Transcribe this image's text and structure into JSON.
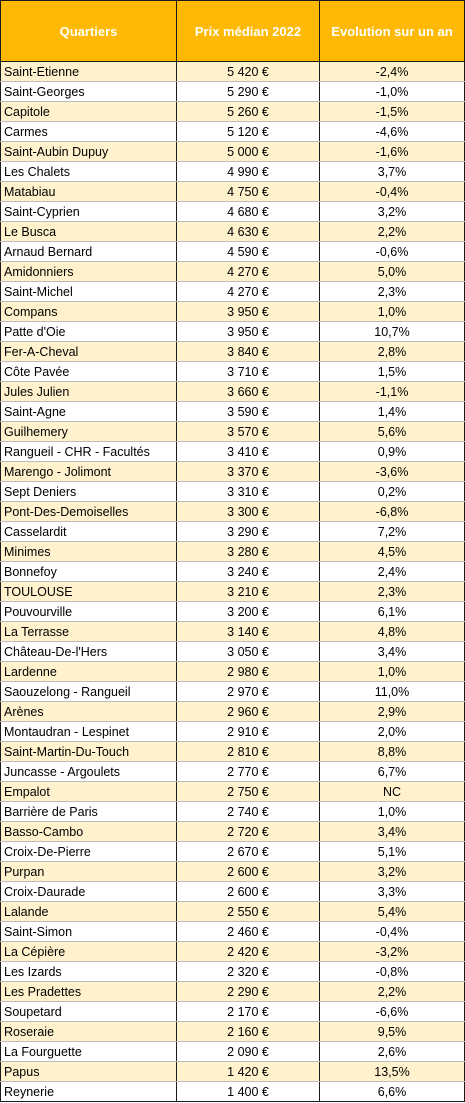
{
  "headers": {
    "quartier": "Quartiers",
    "prix": "Prix médian 2022",
    "evolution": "Evolution sur un an"
  },
  "rows": [
    {
      "name": "Saint-Etienne",
      "price": "5 420 €",
      "evo": "-2,4%"
    },
    {
      "name": "Saint-Georges",
      "price": "5 290 €",
      "evo": "-1,0%"
    },
    {
      "name": "Capitole",
      "price": "5 260 €",
      "evo": "-1,5%"
    },
    {
      "name": "Carmes",
      "price": "5 120 €",
      "evo": "-4,6%"
    },
    {
      "name": "Saint-Aubin Dupuy",
      "price": "5 000 €",
      "evo": "-1,6%"
    },
    {
      "name": "Les Chalets",
      "price": "4 990 €",
      "evo": "3,7%"
    },
    {
      "name": "Matabiau",
      "price": "4 750 €",
      "evo": "-0,4%"
    },
    {
      "name": "Saint-Cyprien",
      "price": "4 680 €",
      "evo": "3,2%"
    },
    {
      "name": "Le Busca",
      "price": "4 630 €",
      "evo": "2,2%"
    },
    {
      "name": "Arnaud Bernard",
      "price": "4 590 €",
      "evo": "-0,6%"
    },
    {
      "name": "Amidonniers",
      "price": "4 270 €",
      "evo": "5,0%"
    },
    {
      "name": "Saint-Michel",
      "price": "4 270 €",
      "evo": "2,3%"
    },
    {
      "name": "Compans",
      "price": "3 950 €",
      "evo": "1,0%"
    },
    {
      "name": "Patte d'Oie",
      "price": "3 950 €",
      "evo": "10,7%"
    },
    {
      "name": "Fer-A-Cheval",
      "price": "3 840 €",
      "evo": "2,8%"
    },
    {
      "name": "Côte Pavée",
      "price": "3 710 €",
      "evo": "1,5%"
    },
    {
      "name": "Jules Julien",
      "price": "3 660 €",
      "evo": "-1,1%"
    },
    {
      "name": "Saint-Agne",
      "price": "3 590 €",
      "evo": "1,4%"
    },
    {
      "name": "Guilhemery",
      "price": "3 570 €",
      "evo": "5,6%"
    },
    {
      "name": "Rangueil - CHR - Facultés",
      "price": "3 410 €",
      "evo": "0,9%"
    },
    {
      "name": "Marengo - Jolimont",
      "price": "3 370 €",
      "evo": "-3,6%"
    },
    {
      "name": "Sept Deniers",
      "price": "3 310 €",
      "evo": "0,2%"
    },
    {
      "name": "Pont-Des-Demoiselles",
      "price": "3 300 €",
      "evo": "-6,8%"
    },
    {
      "name": "Casselardit",
      "price": "3 290 €",
      "evo": "7,2%"
    },
    {
      "name": "Minimes",
      "price": "3 280 €",
      "evo": "4,5%"
    },
    {
      "name": "Bonnefoy",
      "price": "3 240 €",
      "evo": "2,4%"
    },
    {
      "name": "TOULOUSE",
      "price": "3 210 €",
      "evo": "2,3%"
    },
    {
      "name": "Pouvourville",
      "price": "3 200 €",
      "evo": "6,1%"
    },
    {
      "name": "La Terrasse",
      "price": "3 140 €",
      "evo": "4,8%"
    },
    {
      "name": "Château-De-l'Hers",
      "price": "3 050 €",
      "evo": "3,4%"
    },
    {
      "name": "Lardenne",
      "price": "2 980 €",
      "evo": "1,0%"
    },
    {
      "name": "Saouzelong - Rangueil",
      "price": "2 970 €",
      "evo": "11,0%"
    },
    {
      "name": "Arènes",
      "price": "2 960 €",
      "evo": "2,9%"
    },
    {
      "name": "Montaudran - Lespinet",
      "price": "2 910 €",
      "evo": "2,0%"
    },
    {
      "name": "Saint-Martin-Du-Touch",
      "price": "2 810 €",
      "evo": "8,8%"
    },
    {
      "name": "Juncasse - Argoulets",
      "price": "2 770 €",
      "evo": "6,7%"
    },
    {
      "name": "Empalot",
      "price": "2 750 €",
      "evo": "NC"
    },
    {
      "name": "Barrière de Paris",
      "price": "2 740 €",
      "evo": "1,0%"
    },
    {
      "name": "Basso-Cambo",
      "price": "2 720 €",
      "evo": "3,4%"
    },
    {
      "name": "Croix-De-Pierre",
      "price": "2 670 €",
      "evo": "5,1%"
    },
    {
      "name": "Purpan",
      "price": "2 600 €",
      "evo": "3,2%"
    },
    {
      "name": "Croix-Daurade",
      "price": "2 600 €",
      "evo": "3,3%"
    },
    {
      "name": "Lalande",
      "price": "2 550 €",
      "evo": "5,4%"
    },
    {
      "name": "Saint-Simon",
      "price": "2 460 €",
      "evo": "-0,4%"
    },
    {
      "name": "La Cépière",
      "price": "2 420 €",
      "evo": "-3,2%"
    },
    {
      "name": "Les Izards",
      "price": "2 320 €",
      "evo": "-0,8%"
    },
    {
      "name": "Les Pradettes",
      "price": "2 290 €",
      "evo": "2,2%"
    },
    {
      "name": "Soupetard",
      "price": "2 170 €",
      "evo": "-6,6%"
    },
    {
      "name": "Roseraie",
      "price": "2 160 €",
      "evo": "9,5%"
    },
    {
      "name": "La Fourguette",
      "price": "2 090 €",
      "evo": "2,6%"
    },
    {
      "name": "Papus",
      "price": "1 420 €",
      "evo": "13,5%"
    },
    {
      "name": "Reynerie",
      "price": "1 400 €",
      "evo": "6,6%"
    }
  ],
  "colors": {
    "header_bg": "#ffb902",
    "header_text": "#ffffff",
    "band_odd": "#fff2cc",
    "band_even": "#ffffff"
  }
}
